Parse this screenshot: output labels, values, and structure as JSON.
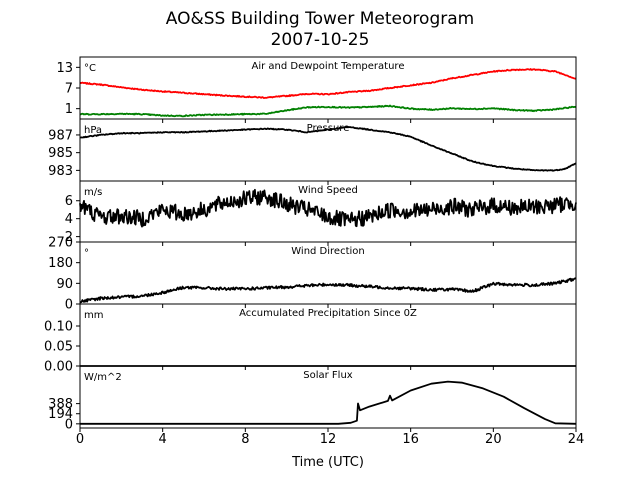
{
  "chart_data": {
    "type": "line",
    "title": "AO&SS Building Tower Meteorogram",
    "subtitle": "2007-10-25",
    "xlabel": "Time (UTC)",
    "x_ticks": [
      0,
      4,
      8,
      12,
      16,
      20,
      24
    ],
    "x_tick_labels": [
      "0",
      "4",
      "8",
      "12",
      "16",
      "20",
      "24"
    ],
    "xlim": [
      0,
      24
    ],
    "grid": false,
    "panels": [
      {
        "id": "temp",
        "title": "Air and Dewpoint Temperature",
        "unit": "°C",
        "ylim": [
          -2,
          16
        ],
        "y_ticks": [
          1,
          7,
          13
        ],
        "y_tick_labels": [
          "1",
          "7",
          "13"
        ],
        "noise": 0.15,
        "series": [
          {
            "name": "",
            "color": "#ff0000",
            "points": [
              [
                0,
                8.5
              ],
              [
                1,
                8
              ],
              [
                2,
                7.2
              ],
              [
                3,
                6.5
              ],
              [
                4,
                6
              ],
              [
                5,
                5.6
              ],
              [
                6,
                5.2
              ],
              [
                7,
                4.8
              ],
              [
                8,
                4.5
              ],
              [
                9,
                4.2
              ],
              [
                10,
                4.7
              ],
              [
                11,
                5.3
              ],
              [
                12,
                5.2
              ],
              [
                13,
                5.8
              ],
              [
                14,
                6.2
              ],
              [
                15,
                7
              ],
              [
                16,
                7.8
              ],
              [
                17,
                8.5
              ],
              [
                18,
                9.8
              ],
              [
                19,
                10.8
              ],
              [
                20,
                11.8
              ],
              [
                21,
                12.3
              ],
              [
                22,
                12.4
              ],
              [
                23,
                11.8
              ],
              [
                23.5,
                10.8
              ],
              [
                24,
                9.6
              ]
            ]
          },
          {
            "name": "",
            "color": "#008000",
            "points": [
              [
                0,
                -0.6
              ],
              [
                1,
                -0.6
              ],
              [
                2,
                -0.5
              ],
              [
                3,
                -0.6
              ],
              [
                4,
                -1
              ],
              [
                5,
                -1.1
              ],
              [
                6,
                -0.8
              ],
              [
                7,
                -0.7
              ],
              [
                8,
                -0.6
              ],
              [
                9,
                -0.5
              ],
              [
                10,
                0.5
              ],
              [
                11,
                1.4
              ],
              [
                12,
                1.5
              ],
              [
                13,
                1.3
              ],
              [
                14,
                1.5
              ],
              [
                15,
                1.8
              ],
              [
                16,
                1
              ],
              [
                17,
                0.7
              ],
              [
                18,
                1.1
              ],
              [
                19,
                0.9
              ],
              [
                20,
                1.1
              ],
              [
                21,
                0.6
              ],
              [
                22,
                0.4
              ],
              [
                23,
                0.8
              ],
              [
                24,
                1.6
              ]
            ]
          }
        ]
      },
      {
        "id": "pres",
        "title": "Pressure",
        "unit": "hPa",
        "ylim": [
          981.8,
          988.8
        ],
        "y_ticks": [
          983,
          985,
          987
        ],
        "y_tick_labels": [
          "983",
          "985",
          "987"
        ],
        "noise": 0.05,
        "series": [
          {
            "name": "",
            "color": "#000000",
            "points": [
              [
                0,
                986.7
              ],
              [
                1,
                987
              ],
              [
                2,
                987.2
              ],
              [
                3,
                987.2
              ],
              [
                4,
                987.3
              ],
              [
                5,
                987.3
              ],
              [
                6,
                987.4
              ],
              [
                7,
                987.5
              ],
              [
                8,
                987.6
              ],
              [
                9,
                987.7
              ],
              [
                10,
                987.6
              ],
              [
                11,
                987.3
              ],
              [
                12,
                987.6
              ],
              [
                13,
                987.9
              ],
              [
                14,
                987.6
              ],
              [
                15,
                987.3
              ],
              [
                16,
                986.8
              ],
              [
                17,
                985.8
              ],
              [
                18,
                984.9
              ],
              [
                19,
                984
              ],
              [
                20,
                983.5
              ],
              [
                21,
                983.2
              ],
              [
                22,
                983
              ],
              [
                23,
                983
              ],
              [
                23.5,
                983.2
              ],
              [
                24,
                983.8
              ]
            ]
          }
        ]
      },
      {
        "id": "wspd",
        "title": "Wind Speed",
        "unit": "m/s",
        "ylim": [
          1.4,
          8.2
        ],
        "y_ticks": [
          2,
          4,
          6
        ],
        "y_tick_labels": [
          "2",
          "4",
          "6"
        ],
        "noise": 0.9,
        "series": [
          {
            "name": "",
            "color": "#000000",
            "points": [
              [
                0,
                5.5
              ],
              [
                1,
                4.2
              ],
              [
                2,
                4.3
              ],
              [
                3,
                4
              ],
              [
                4,
                5
              ],
              [
                5,
                4.5
              ],
              [
                6,
                5
              ],
              [
                7,
                5.8
              ],
              [
                8,
                6.2
              ],
              [
                9,
                6.5
              ],
              [
                10,
                5.6
              ],
              [
                11,
                5
              ],
              [
                12,
                4.2
              ],
              [
                13,
                3.7
              ],
              [
                14,
                4.2
              ],
              [
                15,
                5
              ],
              [
                16,
                4.8
              ],
              [
                17,
                5
              ],
              [
                18,
                5.4
              ],
              [
                19,
                5
              ],
              [
                20,
                5.5
              ],
              [
                21,
                5.2
              ],
              [
                22,
                5.3
              ],
              [
                23,
                5.5
              ],
              [
                24,
                5.8
              ]
            ]
          }
        ]
      },
      {
        "id": "wdir",
        "title": "Wind Direction",
        "unit": "°",
        "ylim": [
          0,
          270
        ],
        "y_ticks": [
          0,
          90,
          180,
          270
        ],
        "y_tick_labels": [
          "0",
          "90",
          "180",
          "270"
        ],
        "noise": 6,
        "series": [
          {
            "name": "",
            "color": "#000000",
            "points": [
              [
                0,
                10
              ],
              [
                1,
                25
              ],
              [
                2,
                30
              ],
              [
                3,
                35
              ],
              [
                4,
                50
              ],
              [
                5,
                72
              ],
              [
                6,
                70
              ],
              [
                7,
                66
              ],
              [
                8,
                66
              ],
              [
                9,
                70
              ],
              [
                10,
                74
              ],
              [
                11,
                80
              ],
              [
                12,
                85
              ],
              [
                13,
                82
              ],
              [
                14,
                76
              ],
              [
                15,
                70
              ],
              [
                16,
                68
              ],
              [
                17,
                62
              ],
              [
                18,
                64
              ],
              [
                19,
                55
              ],
              [
                20,
                88
              ],
              [
                21,
                84
              ],
              [
                22,
                82
              ],
              [
                23,
                90
              ],
              [
                24,
                110
              ]
            ]
          }
        ]
      },
      {
        "id": "precip",
        "title": "Accumulated Precipitation Since 0Z",
        "unit": "mm",
        "ylim": [
          0,
          0.155
        ],
        "y_ticks": [
          0,
          0.05,
          0.1
        ],
        "y_tick_labels": [
          "0.00",
          "0.05",
          "0.10"
        ],
        "noise": 0,
        "series": [
          {
            "name": "",
            "color": "#000000",
            "points": [
              [
                0,
                0
              ],
              [
                24,
                0
              ]
            ]
          }
        ]
      },
      {
        "id": "solar",
        "title": "Solar Flux",
        "unit": "W/m^2",
        "ylim": [
          -80,
          1110
        ],
        "y_ticks": [
          0,
          194,
          388
        ],
        "y_tick_labels": [
          "0",
          "194",
          "388"
        ],
        "noise": 0,
        "series": [
          {
            "name": "",
            "color": "#000000",
            "points": [
              [
                0,
                0
              ],
              [
                12.5,
                0
              ],
              [
                13.1,
                20
              ],
              [
                13.4,
                60
              ],
              [
                13.45,
                390
              ],
              [
                13.55,
                260
              ],
              [
                14,
                330
              ],
              [
                14.9,
                440
              ],
              [
                15,
                540
              ],
              [
                15.1,
                450
              ],
              [
                16,
                640
              ],
              [
                17,
                770
              ],
              [
                17.8,
                810
              ],
              [
                18.5,
                790
              ],
              [
                19.5,
                680
              ],
              [
                20.5,
                520
              ],
              [
                21.5,
                300
              ],
              [
                22.5,
                90
              ],
              [
                23,
                10
              ],
              [
                24,
                0
              ]
            ]
          }
        ]
      }
    ]
  }
}
